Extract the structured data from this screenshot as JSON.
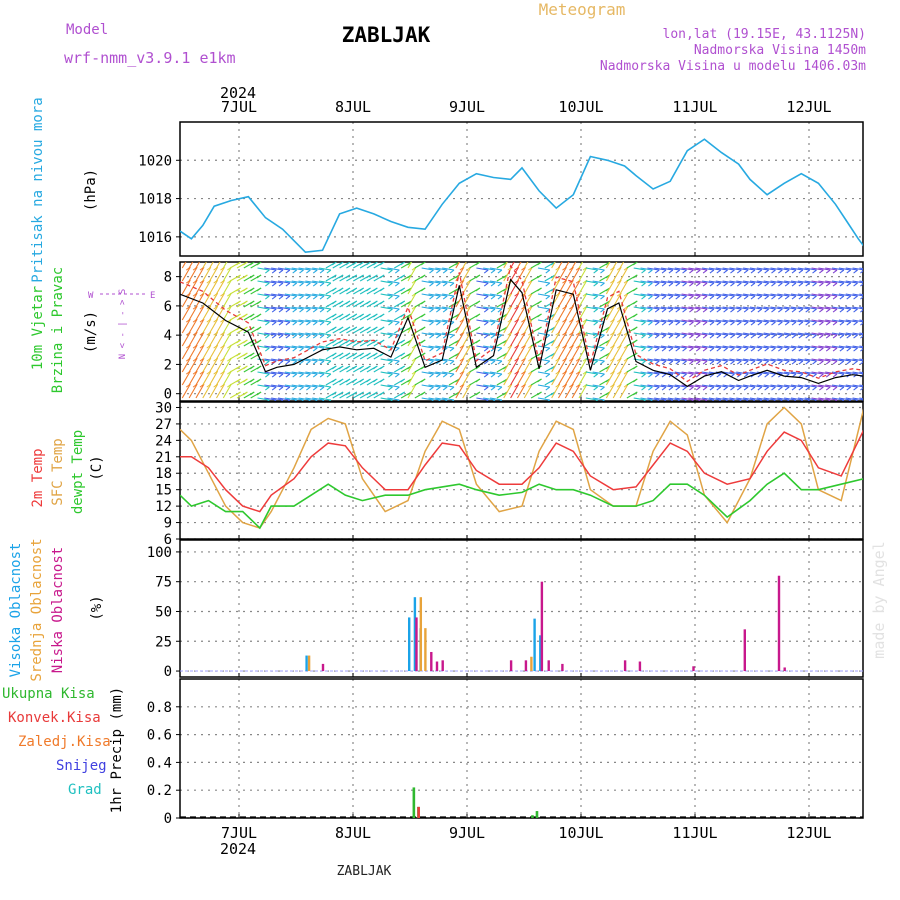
{
  "header": {
    "model_label": "Model",
    "model_name": "wrf-nmm_v3.9.1  e1km",
    "title": "ZABLJAK",
    "meteogram": "Meteogram",
    "lonlat": "lon,lat (19.15E, 43.1125N)",
    "elevation": "Nadmorska Visina 1450m",
    "model_elevation": "Nadmorska Visina u modelu 1406.03m",
    "year_top": "2024",
    "year_bottom": "2024",
    "footer": "ZABLJAK",
    "watermark": "made by Angel"
  },
  "days": [
    "7JUL",
    "8JUL",
    "9JUL",
    "10JUL",
    "11JUL",
    "12JUL"
  ],
  "colors": {
    "pressure": "#27a9e1",
    "temp2m": "#ee3b3b",
    "sfc": "#e0a445",
    "dewpt": "#2ec82e",
    "high_cloud": "#1ba3e8",
    "mid_cloud": "#e8a33a",
    "low_cloud": "#c8188c",
    "total_precip": "#2fb82f",
    "conv_precip": "#e83a3a",
    "frz_precip": "#f07a2a",
    "snow": "#4040e0",
    "grad": "#20c0c0",
    "purple": "#b050d0",
    "wind_line": "#000000",
    "wind_dashed": "#e83a3a"
  },
  "panels": {
    "pressure": {
      "ylabel": "Pritisak na nivou mora",
      "unit": "(hPa)"
    },
    "wind": {
      "ylabel1": "10m Vjetar",
      "ylabel2": "Brzina i Pravac",
      "unit": "(m/s)",
      "compass": {
        "n": "N",
        "s": "S",
        "w": "W",
        "e": "E"
      }
    },
    "temp": {
      "ylabel1": "2m Temp",
      "ylabel2": "SFC Temp",
      "ylabel3": "dewpt Temp",
      "unit": "(C)"
    },
    "cloud": {
      "ylabel1": "Visoka Oblacnost",
      "ylabel2": "Srednja Oblacnost",
      "ylabel3": "Niska Oblacnost",
      "unit": "(%)"
    },
    "precip": {
      "legend": [
        "Ukupna Kisa",
        "Konvek.Kisa",
        "Zaledj.Kisa",
        "Snijeg",
        "Grad"
      ],
      "ylabel": "1hr Precip (mm)"
    }
  },
  "chart_data": [
    {
      "type": "line",
      "title": "",
      "ylabel": "Pritisak na nivou mora (hPa)",
      "ylim": [
        1015,
        1022
      ],
      "yticks": [
        1016,
        1018,
        1020
      ],
      "xlim": [
        0,
        6
      ],
      "grid": true,
      "series": [
        {
          "name": "Pritisak na nivou mora",
          "x": [
            0,
            0.1,
            0.2,
            0.3,
            0.45,
            0.6,
            0.75,
            0.9,
            1.0,
            1.1,
            1.25,
            1.4,
            1.55,
            1.7,
            1.85,
            2.0,
            2.15,
            2.3,
            2.45,
            2.6,
            2.75,
            2.9,
            3.0,
            3.15,
            3.3,
            3.45,
            3.6,
            3.75,
            3.9,
            4.0,
            4.15,
            4.3,
            4.45,
            4.6,
            4.75,
            4.9,
            5.0,
            5.15,
            5.3,
            5.45,
            5.6,
            5.75,
            5.85,
            5.95,
            6.0
          ],
          "y": [
            1016.3,
            1015.9,
            1016.6,
            1017.6,
            1017.9,
            1018.1,
            1017.0,
            1016.4,
            1015.8,
            1015.2,
            1015.3,
            1017.2,
            1017.5,
            1017.2,
            1016.8,
            1016.5,
            1016.4,
            1017.7,
            1018.8,
            1019.3,
            1019.1,
            1019.0,
            1019.6,
            1018.4,
            1017.5,
            1018.2,
            1020.2,
            1020.0,
            1019.7,
            1019.2,
            1018.5,
            1018.9,
            1020.5,
            1021.1,
            1020.4,
            1019.8,
            1019.0,
            1018.2,
            1018.8,
            1019.3,
            1018.8,
            1017.7,
            1016.8,
            1015.9,
            1015.5
          ]
        }
      ]
    },
    {
      "type": "line",
      "title": "",
      "ylabel": "10m Vjetar Brzina i Pravac (m/s)",
      "ylim": [
        -0.5,
        9
      ],
      "yticks": [
        0,
        2,
        4,
        6,
        8
      ],
      "xlim": [
        0,
        6
      ],
      "grid": true,
      "series": [
        {
          "name": "Brzina",
          "x": [
            0,
            0.2,
            0.4,
            0.6,
            0.75,
            0.85,
            1.0,
            1.1,
            1.25,
            1.4,
            1.55,
            1.7,
            1.85,
            2.0,
            2.15,
            2.3,
            2.45,
            2.6,
            2.75,
            2.9,
            3.0,
            3.15,
            3.3,
            3.45,
            3.6,
            3.75,
            3.85,
            4.0,
            4.15,
            4.3,
            4.45,
            4.6,
            4.75,
            4.9,
            5.0,
            5.15,
            5.3,
            5.45,
            5.6,
            5.75,
            5.9,
            6.0
          ],
          "y": [
            6.8,
            6.2,
            5.0,
            4.2,
            1.5,
            1.8,
            2.0,
            2.4,
            3.0,
            3.2,
            3.0,
            3.1,
            2.5,
            5.2,
            1.8,
            2.3,
            7.4,
            1.8,
            2.6,
            7.8,
            6.9,
            1.7,
            7.1,
            6.8,
            1.6,
            5.8,
            6.2,
            2.2,
            1.6,
            1.3,
            0.5,
            1.2,
            1.5,
            0.9,
            1.2,
            1.6,
            1.2,
            1.1,
            0.7,
            1.1,
            1.3,
            1.2
          ]
        }
      ]
    },
    {
      "type": "line",
      "title": "",
      "ylabel": "2m Temp SFC Temp dewpt Temp (C)",
      "ylim": [
        6,
        31
      ],
      "yticks": [
        6,
        9,
        12,
        15,
        18,
        21,
        24,
        27,
        30
      ],
      "xlim": [
        0,
        6
      ],
      "grid": true,
      "series": [
        {
          "name": "2m Temp",
          "x": [
            0,
            0.1,
            0.25,
            0.4,
            0.55,
            0.7,
            0.8,
            1.0,
            1.15,
            1.3,
            1.45,
            1.6,
            1.8,
            2.0,
            2.15,
            2.3,
            2.45,
            2.6,
            2.8,
            3.0,
            3.15,
            3.3,
            3.45,
            3.6,
            3.8,
            4.0,
            4.15,
            4.3,
            4.45,
            4.6,
            4.8,
            5.0,
            5.15,
            5.3,
            5.45,
            5.6,
            5.8,
            6.0
          ],
          "y": [
            21,
            21,
            19,
            15,
            12,
            11,
            14,
            17,
            21,
            23.5,
            23,
            19,
            15,
            15,
            19.5,
            23.5,
            23,
            18.5,
            16,
            16,
            19,
            23.5,
            22,
            17.5,
            15,
            15.5,
            19.5,
            23.5,
            22,
            18,
            16,
            17,
            22,
            25.5,
            24,
            19,
            17.5,
            26
          ]
        },
        {
          "name": "SFC Temp",
          "x": [
            0,
            0.1,
            0.25,
            0.4,
            0.55,
            0.7,
            0.8,
            1.0,
            1.15,
            1.3,
            1.45,
            1.6,
            1.8,
            2.0,
            2.15,
            2.3,
            2.45,
            2.6,
            2.8,
            3.0,
            3.15,
            3.3,
            3.45,
            3.6,
            3.8,
            4.0,
            4.15,
            4.3,
            4.45,
            4.6,
            4.8,
            5.0,
            5.15,
            5.3,
            5.45,
            5.6,
            5.8,
            6.0
          ],
          "y": [
            26,
            24,
            18,
            12,
            9,
            8,
            11,
            19,
            26,
            28,
            27,
            17,
            11,
            13,
            22,
            27.5,
            26,
            16,
            11,
            12,
            22,
            27.5,
            26,
            15,
            12,
            12,
            22,
            27.5,
            25,
            14,
            9,
            17,
            27,
            30,
            27,
            15,
            13,
            30
          ]
        },
        {
          "name": "dewpt Temp",
          "x": [
            0,
            0.1,
            0.25,
            0.4,
            0.55,
            0.7,
            0.8,
            1.0,
            1.15,
            1.3,
            1.45,
            1.6,
            1.8,
            2.0,
            2.15,
            2.3,
            2.45,
            2.6,
            2.8,
            3.0,
            3.15,
            3.3,
            3.45,
            3.6,
            3.8,
            4.0,
            4.15,
            4.3,
            4.45,
            4.6,
            4.8,
            5.0,
            5.15,
            5.3,
            5.45,
            5.6,
            5.8,
            6.0
          ],
          "y": [
            14,
            12,
            13,
            11,
            11,
            8,
            12,
            12,
            14,
            16,
            14,
            13,
            14,
            14,
            15,
            15.5,
            16,
            15,
            14,
            14.5,
            16,
            15,
            15,
            14,
            12,
            12,
            13,
            16,
            16,
            14,
            10,
            13,
            16,
            18,
            15,
            15,
            16,
            17
          ]
        }
      ]
    },
    {
      "type": "bar",
      "title": "",
      "ylabel": "Oblacnost (%)",
      "ylim": [
        -5,
        110
      ],
      "yticks": [
        0,
        25,
        50,
        75,
        100
      ],
      "xlim": [
        0,
        6
      ],
      "grid": true,
      "series": [
        {
          "name": "Visoka Oblacnost",
          "x": [
            1.1,
            2.0,
            2.05,
            2.1,
            3.1,
            3.15
          ],
          "y": [
            13,
            45,
            62,
            36,
            44,
            30
          ]
        },
        {
          "name": "Srednja Oblacnost",
          "x": [
            1.1,
            2.08,
            2.12,
            3.05
          ],
          "y": [
            13,
            62,
            36,
            12
          ]
        },
        {
          "name": "Niska Oblacnost",
          "x": [
            1.2,
            2.02,
            2.15,
            2.2,
            2.25,
            2.85,
            2.98,
            3.12,
            3.18,
            3.3,
            3.85,
            3.98,
            4.45,
            4.9,
            5.2,
            5.25,
            6.0,
            6.05
          ],
          "y": [
            6,
            45,
            16,
            8,
            9,
            9,
            9,
            75,
            9,
            6,
            9,
            8,
            4,
            35,
            80,
            3,
            5,
            8
          ]
        }
      ]
    },
    {
      "type": "bar",
      "title": "",
      "ylabel": "1hr Precip (mm)",
      "ylim": [
        0,
        1.0
      ],
      "yticks": [
        0,
        0.2,
        0.4,
        0.6,
        0.8
      ],
      "xlim": [
        0,
        6
      ],
      "grid": true,
      "series": [
        {
          "name": "Ukupna Kisa",
          "x": [
            2.04,
            2.08,
            3.08,
            3.12
          ],
          "y": [
            0.22,
            0.08,
            0.02,
            0.05
          ]
        },
        {
          "name": "Konvek.Kisa",
          "x": [
            2.06
          ],
          "y": [
            0.08
          ]
        }
      ]
    }
  ]
}
